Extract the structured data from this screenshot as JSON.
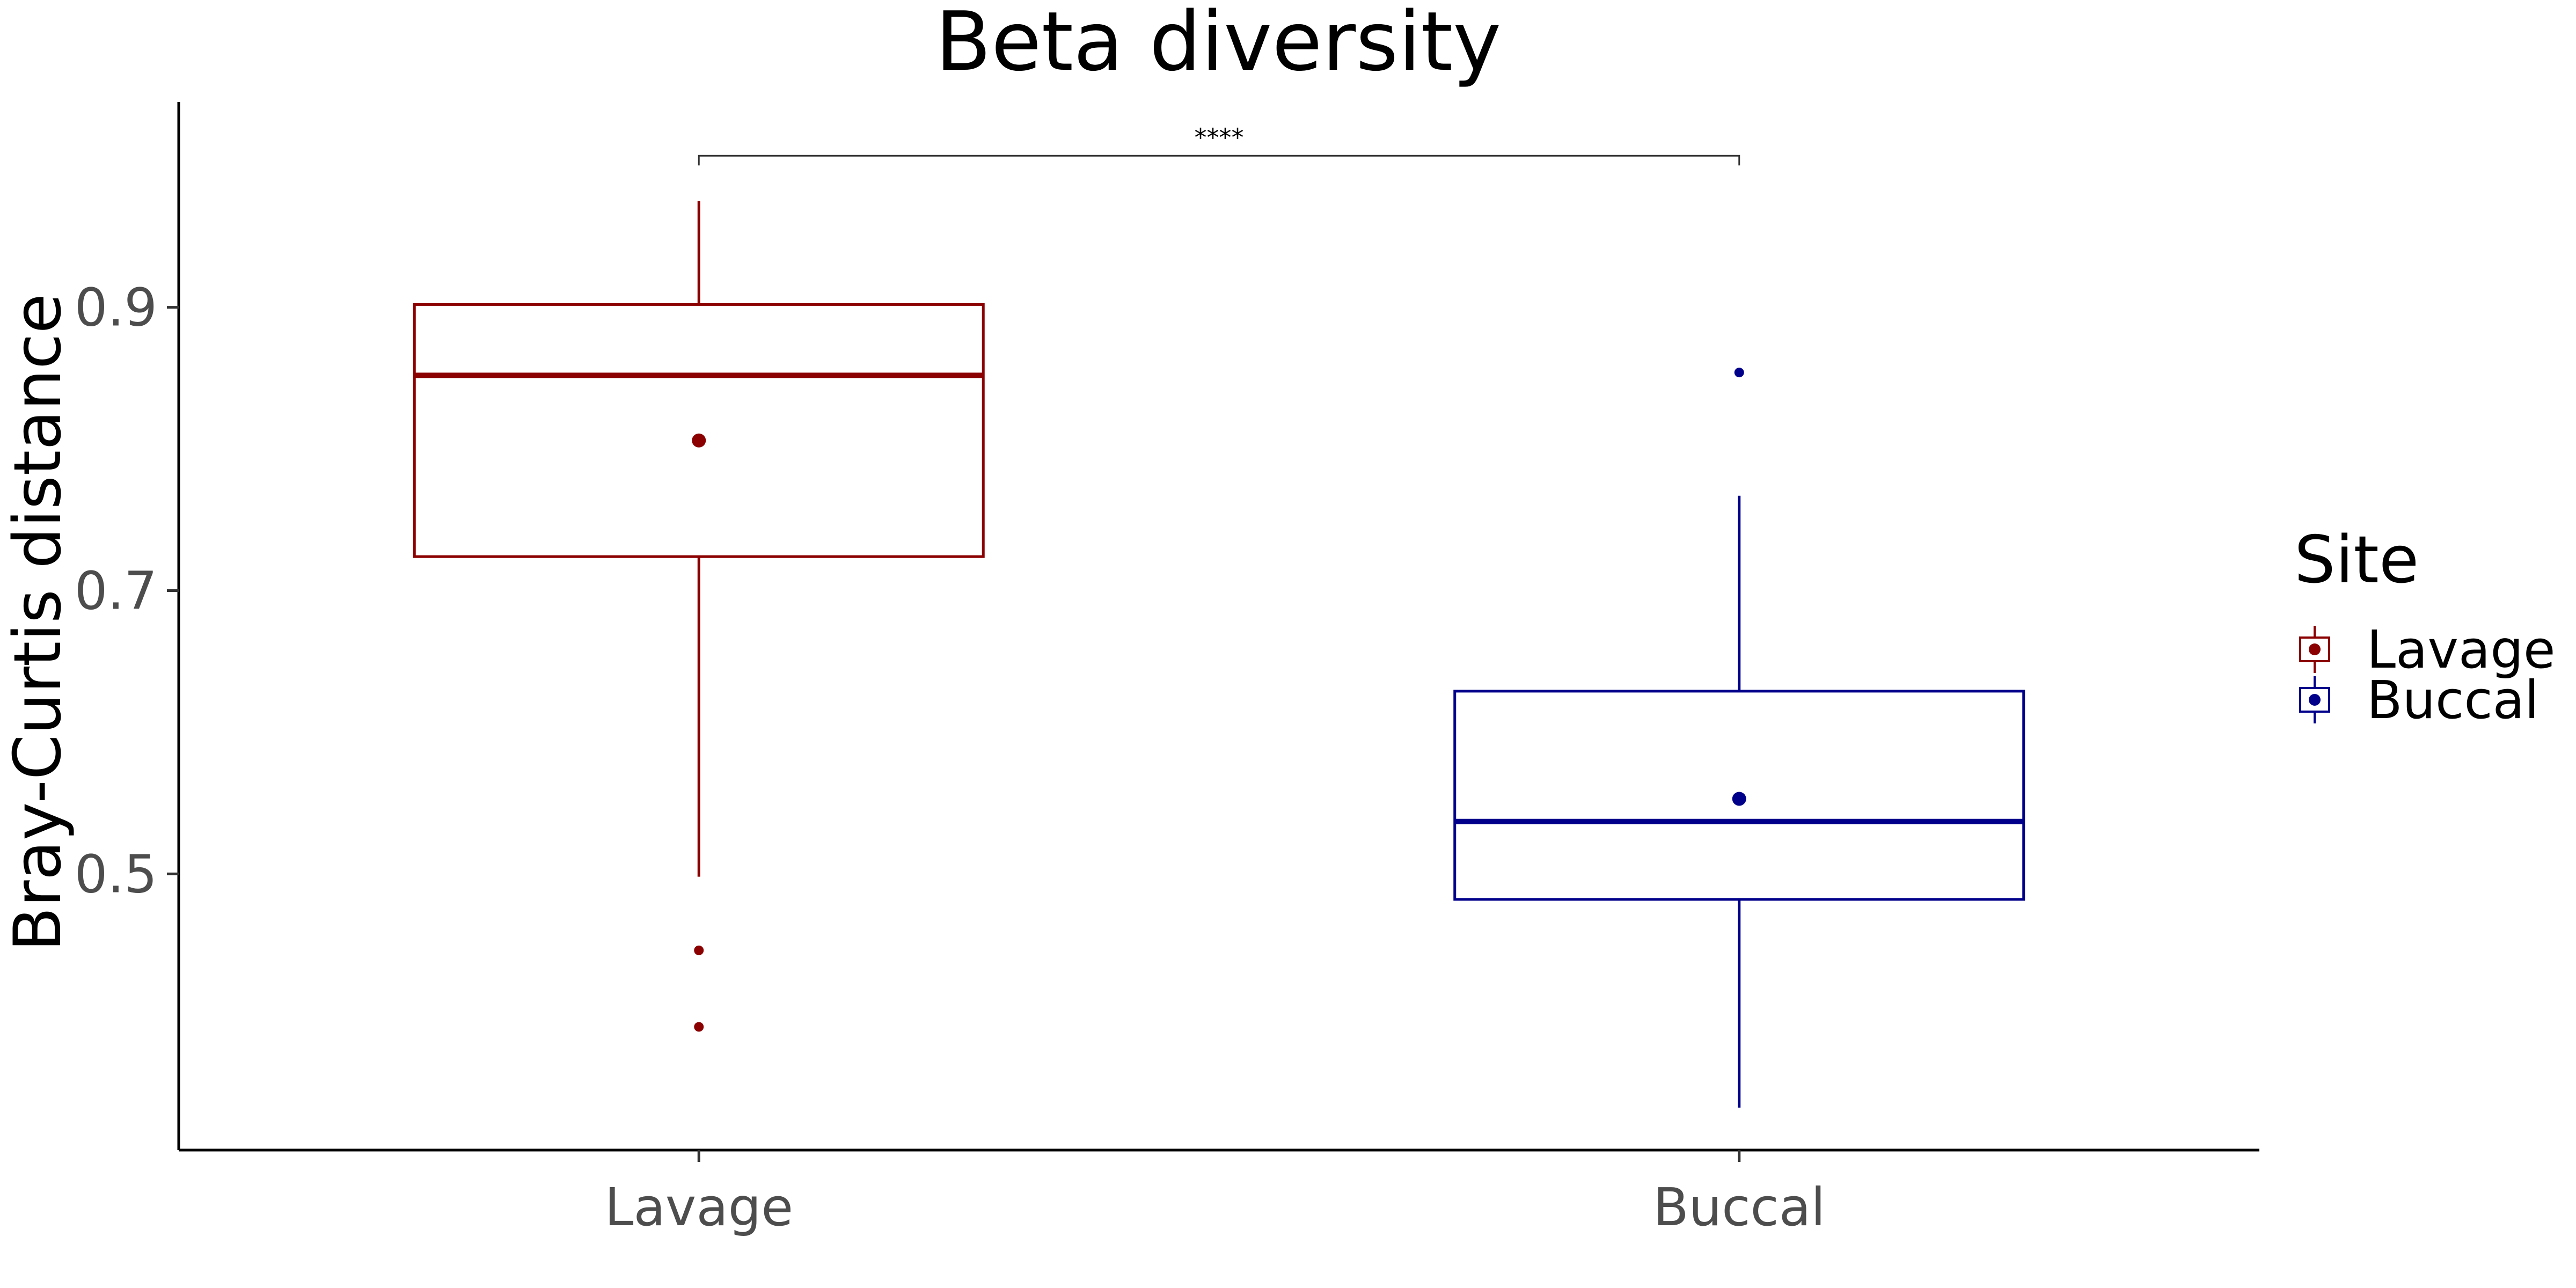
{
  "chart_data": {
    "type": "box",
    "title": "Beta diversity",
    "xlabel": "",
    "ylabel": "Bray-Curtis distance",
    "categories": [
      "Lavage",
      "Buccal"
    ],
    "ylim": [
      0.305,
      1.045
    ],
    "yticks": [
      0.5,
      0.7,
      0.9
    ],
    "ytick_labels": [
      "0.5",
      "0.7",
      "0.9"
    ],
    "grid": false,
    "legend": {
      "title": "Site",
      "position": "right",
      "entries": [
        "Lavage",
        "Buccal"
      ]
    },
    "series": [
      {
        "name": "Lavage",
        "color": "#8b0000",
        "q1": 0.724,
        "median": 0.852,
        "q3": 0.902,
        "whisker_low": 0.498,
        "whisker_high": 0.975,
        "mean": 0.806,
        "outliers": [
          0.446,
          0.392
        ]
      },
      {
        "name": "Buccal",
        "color": "#00008b",
        "q1": 0.482,
        "median": 0.537,
        "q3": 0.629,
        "whisker_low": 0.335,
        "whisker_high": 0.767,
        "mean": 0.553,
        "outliers": [
          0.854
        ]
      }
    ],
    "annotations": [
      {
        "type": "significance",
        "from": "Lavage",
        "to": "Buccal",
        "label": "****",
        "y": 1.007
      }
    ]
  }
}
